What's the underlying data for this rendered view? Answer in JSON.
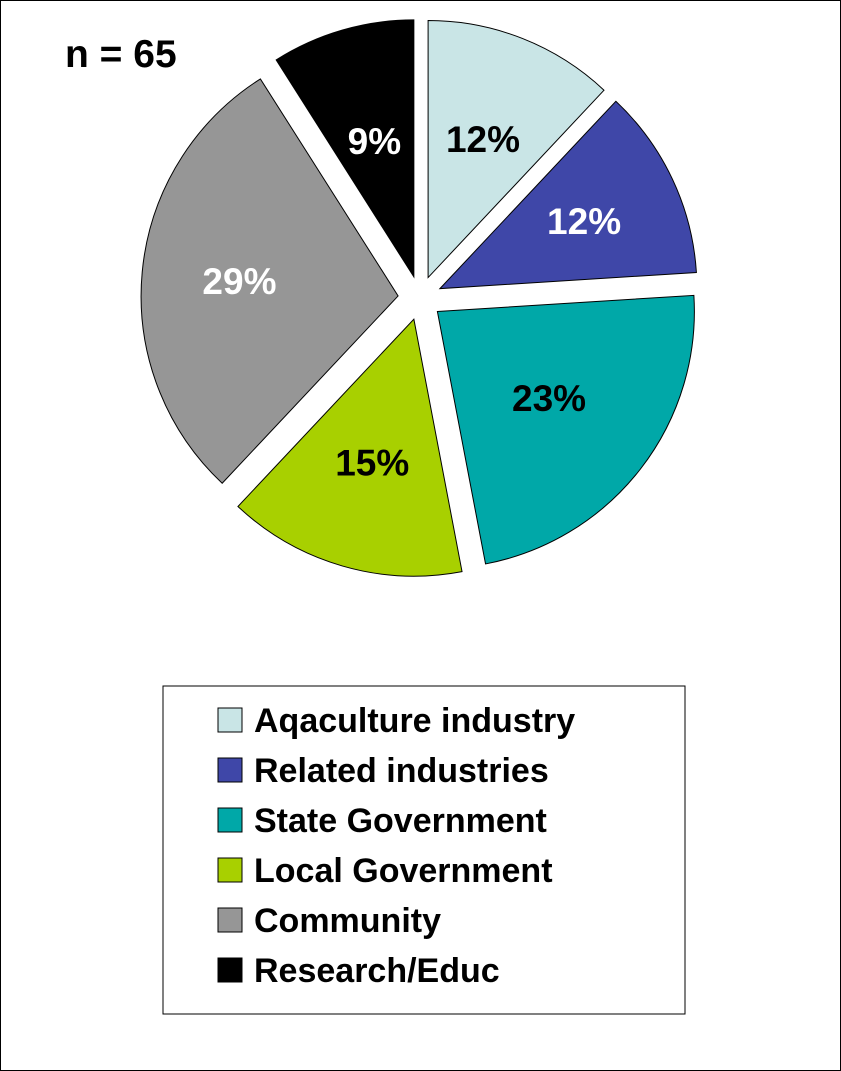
{
  "chart_data": {
    "type": "pie",
    "title": "n = 65",
    "exploded": true,
    "categories": [
      "Aqaculture industry",
      "Related industries",
      "State Government",
      "Local Government",
      "Community",
      "Research/Educ"
    ],
    "values": [
      12,
      12,
      23,
      15,
      29,
      9
    ],
    "labels": [
      "12%",
      "12%",
      "23%",
      "15%",
      "29%",
      "9%"
    ],
    "colors": [
      "#c9e5e6",
      "#3f47a8",
      "#00a8a8",
      "#a8d000",
      "#969696",
      "#000000"
    ],
    "label_colors": [
      "#000000",
      "#ffffff",
      "#000000",
      "#000000",
      "#ffffff",
      "#ffffff"
    ],
    "legend_position": "bottom-center"
  }
}
